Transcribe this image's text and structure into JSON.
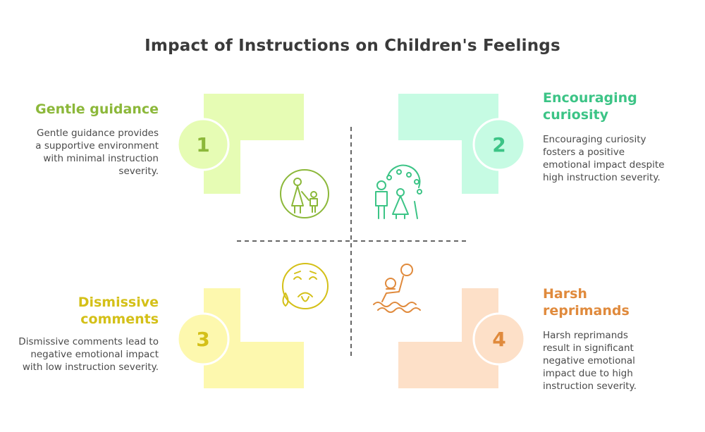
{
  "title": "Impact of Instructions on Children's Feelings",
  "colors": {
    "green": "#8cb83a",
    "teal": "#3cc486",
    "yellow": "#d4c018",
    "orange": "#e08a3c",
    "green_fill": "#e6fcb4",
    "teal_fill": "#c6fbe3",
    "yellow_fill": "#fdf8ae",
    "orange_fill": "#fde0c8",
    "text": "#3a3a3a"
  },
  "quadrants": [
    {
      "number": "1",
      "title": "Gentle guidance",
      "description": "Gentle guidance provides a supportive environment with minimal instruction severity.",
      "icon": "parent-child-icon"
    },
    {
      "number": "2",
      "title": "Encouraging curiosity",
      "description": "Encouraging curiosity fosters a positive emotional impact despite high instruction severity.",
      "icon": "family-ferris-wheel-icon"
    },
    {
      "number": "3",
      "title": "Dismissive comments",
      "description": "Dismissive comments lead to negative emotional impact with low instruction severity.",
      "icon": "sad-face-icon"
    },
    {
      "number": "4",
      "title": "Harsh reprimands",
      "description": "Harsh reprimands result in significant negative emotional impact due to high instruction severity.",
      "icon": "drowning-person-icon"
    }
  ]
}
